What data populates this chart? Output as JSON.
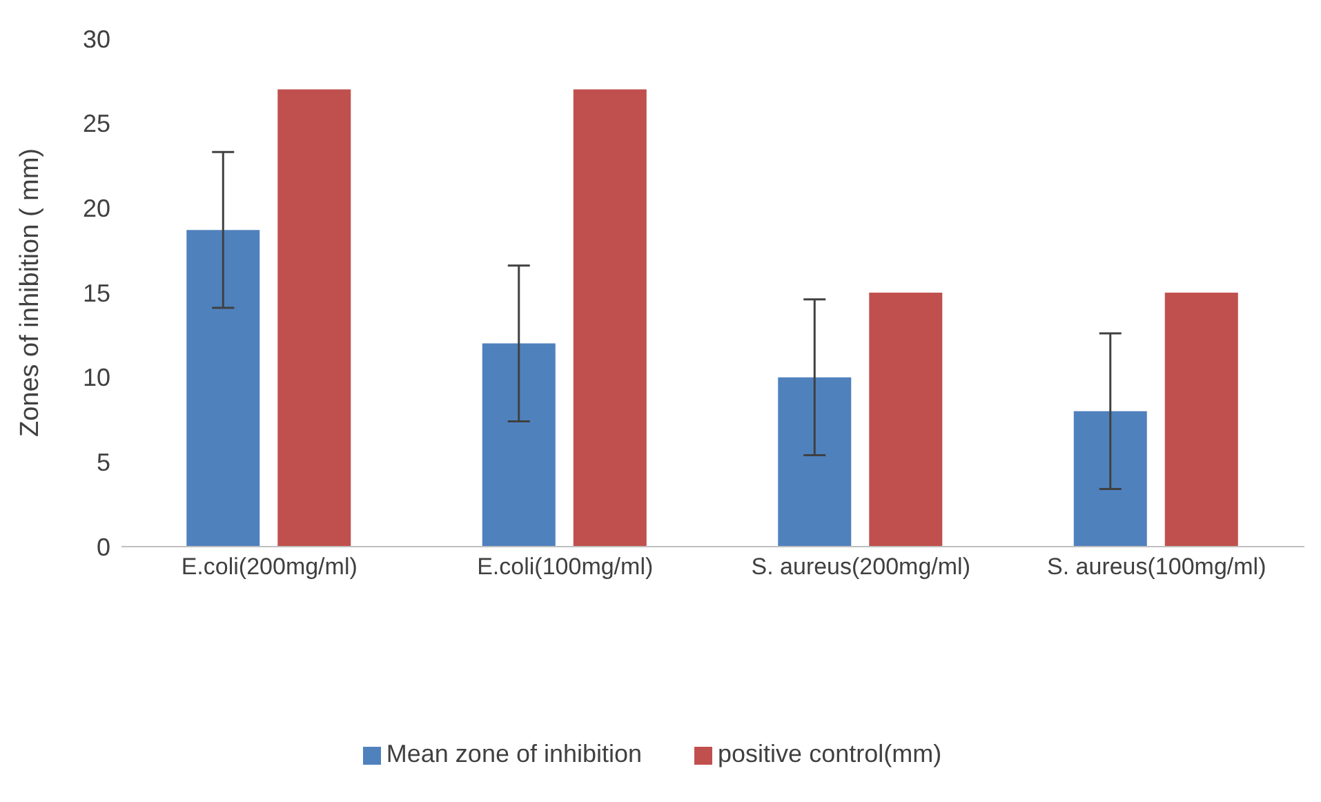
{
  "chart_data": {
    "type": "bar",
    "ylabel": "Zones of inhibition ( mm)",
    "categories": [
      "E.coli(200mg/ml)",
      "E.coli(100mg/ml)",
      "S. aureus(200mg/ml)",
      "S. aureus(100mg/ml)"
    ],
    "series": [
      {
        "name": "Mean zone of inhibition",
        "color": "#4f81bd",
        "values": [
          18.7,
          12,
          10,
          8
        ],
        "errors": [
          4.6,
          4.6,
          4.6,
          4.6
        ]
      },
      {
        "name": "positive control(mm)",
        "color": "#c0504d",
        "values": [
          27,
          27,
          15,
          15
        ]
      }
    ],
    "ylim": [
      0,
      30
    ],
    "yticks": [
      0,
      5,
      10,
      15,
      20,
      25,
      30
    ],
    "grid": false,
    "legend": "bottom"
  }
}
